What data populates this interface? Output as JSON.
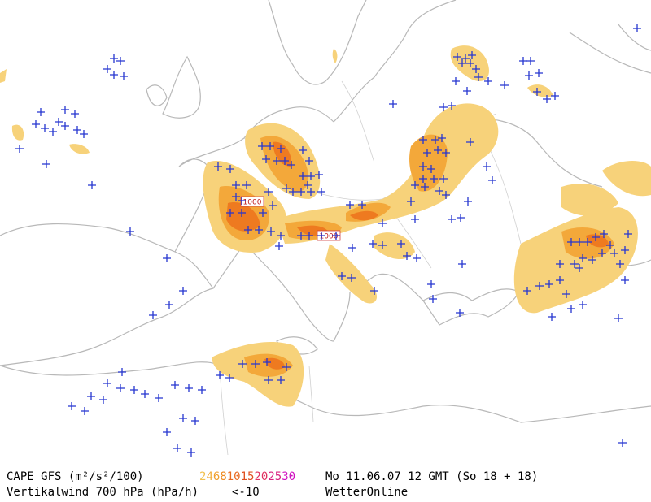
{
  "map": {
    "isobar_labels": [
      "1000",
      "1000"
    ],
    "footer": {
      "line1": {
        "title": "CAPE GFS (m²/s²/100)",
        "legend": [
          {
            "label": "2",
            "color": "#f2c14e"
          },
          {
            "label": "4",
            "color": "#f2b040"
          },
          {
            "label": "6",
            "color": "#f0a030"
          },
          {
            "label": "8",
            "color": "#ee8a20"
          },
          {
            "label": "10",
            "color": "#e86a20"
          },
          {
            "label": "15",
            "color": "#e05020"
          },
          {
            "label": "20",
            "color": "#e03060"
          },
          {
            "label": "25",
            "color": "#d82080"
          },
          {
            "label": "30",
            "color": "#d010c0"
          }
        ],
        "date": "Mo 11.06.07 12 GMT (So 18 + 18)"
      },
      "line2": {
        "title": "Vertikalwind 700 hPa (hPa/h)",
        "threshold": "<-10",
        "threshold_color": "#2030d0",
        "brand": "WetterOnline"
      }
    }
  }
}
